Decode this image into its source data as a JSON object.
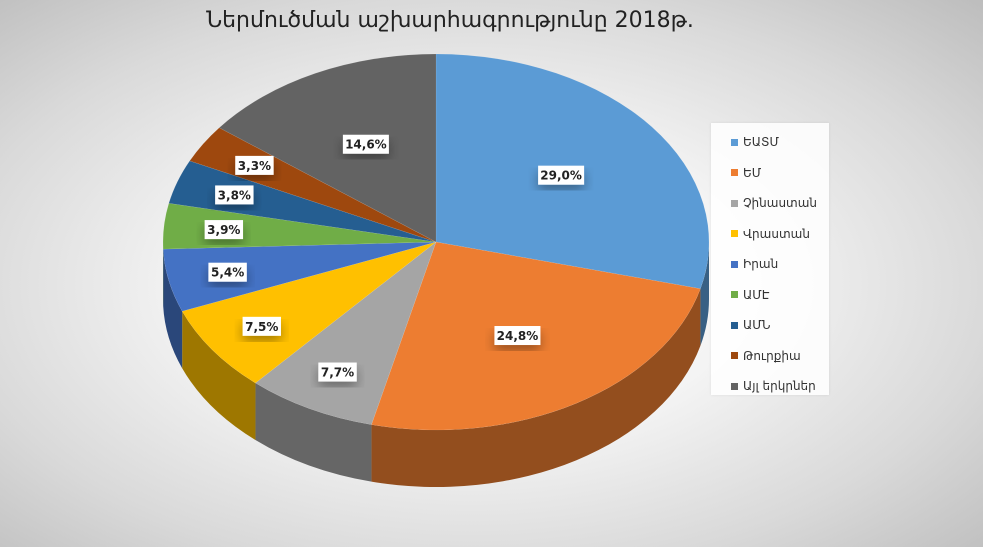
{
  "chart_data": {
    "type": "pie",
    "title": "Ներմուծման աշխարհագրությունը 2018թ.",
    "categories": [
      "ԵԱՏՄ",
      "ԵՄ",
      "Չինաստան",
      "Վրաստան",
      "Իրան",
      "ԱՄԷ",
      "ԱՄՆ",
      "Թուրքիա",
      "Այլ երկրներ"
    ],
    "values": [
      29.0,
      24.8,
      7.7,
      7.5,
      5.4,
      3.9,
      3.8,
      3.3,
      14.6
    ],
    "labels": [
      "29,0%",
      "24,8%",
      "7,7%",
      "7,5%",
      "5,4%",
      "3,9%",
      "3,8%",
      "3,3%",
      "14,6%"
    ],
    "colors": [
      "#5B9BD5",
      "#ED7D31",
      "#A5A5A5",
      "#FFC000",
      "#4472C4",
      "#70AD47",
      "#255E91",
      "#9E480E",
      "#636363"
    ],
    "legend_position": "right",
    "style": "3d-pie"
  }
}
